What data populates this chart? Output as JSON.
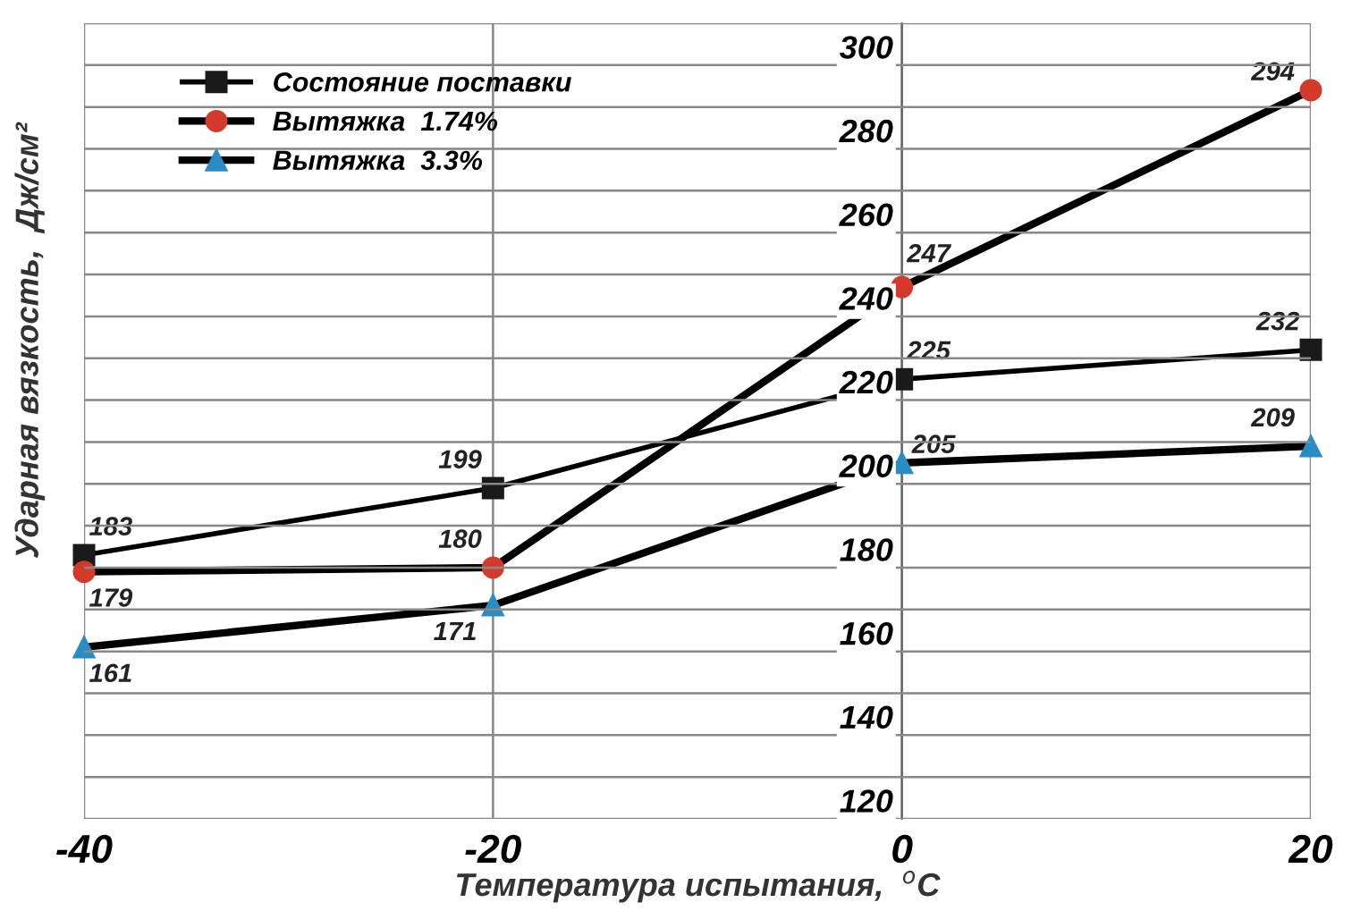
{
  "chart_data": {
    "type": "line",
    "xlabel": "Температура испытания,  $^{o}$C",
    "ylabel": "Ударная вязкость,  Дж/см²",
    "x": [
      -40,
      -20,
      0,
      20
    ],
    "xlim": [
      -40,
      20
    ],
    "xticks": [
      -40,
      -20,
      0,
      20
    ],
    "ylim": [
      120,
      310
    ],
    "yticks": [
      120,
      {
        "value": 130,
        "label": null
      },
      140,
      {
        "value": 150,
        "label": null
      },
      160,
      {
        "value": 170,
        "label": null
      },
      180,
      {
        "value": 190,
        "label": null
      },
      200,
      {
        "value": 210,
        "label": null
      },
      220,
      {
        "value": 230,
        "label": null
      },
      240,
      {
        "value": 250,
        "label": null
      },
      260,
      {
        "value": 270,
        "label": null
      },
      280,
      {
        "value": 290,
        "label": null
      },
      300,
      {
        "value": 310,
        "label": null
      }
    ],
    "grid": true,
    "legend": "top left",
    "data_labels": true,
    "line_style": "solid",
    "series": [
      {
        "name": "Состояние поставки",
        "color": "#1a1a1a",
        "marker": "square",
        "values": [
          183,
          199,
          225,
          232
        ]
      },
      {
        "name": "Вытяжка  1.74%",
        "color": "#d33a2a",
        "marker": "circle",
        "values": [
          179,
          180,
          247,
          294
        ]
      },
      {
        "name": "Вытяжка  3.3%",
        "color": "#2a8cc4",
        "marker": "triangle",
        "values": [
          161,
          171,
          205,
          209
        ]
      }
    ]
  }
}
